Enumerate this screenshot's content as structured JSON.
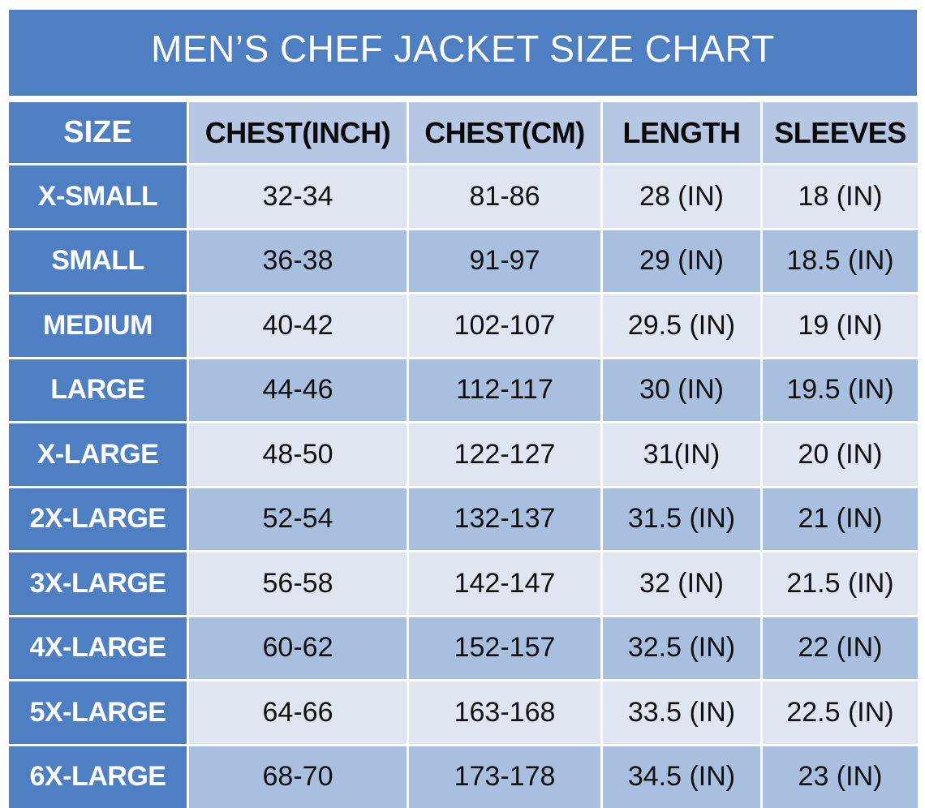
{
  "title": "MEN’S CHEF JACKET SIZE CHART",
  "headers": [
    "SIZE",
    "CHEST(INCH)",
    "CHEST(CM)",
    "LENGTH",
    "SLEEVES"
  ],
  "rows": [
    {
      "size": "X-SMALL",
      "chest_in": "32-34",
      "chest_cm": "81-86",
      "length": "28 (IN)",
      "sleeves": "18 (IN)"
    },
    {
      "size": "SMALL",
      "chest_in": "36-38",
      "chest_cm": "91-97",
      "length": "29 (IN)",
      "sleeves": "18.5 (IN)"
    },
    {
      "size": "MEDIUM",
      "chest_in": "40-42",
      "chest_cm": "102-107",
      "length": "29.5 (IN)",
      "sleeves": "19 (IN)"
    },
    {
      "size": "LARGE",
      "chest_in": "44-46",
      "chest_cm": "112-117",
      "length": "30 (IN)",
      "sleeves": "19.5 (IN)"
    },
    {
      "size": "X-LARGE",
      "chest_in": "48-50",
      "chest_cm": "122-127",
      "length": "31(IN)",
      "sleeves": "20 (IN)"
    },
    {
      "size": "2X-LARGE",
      "chest_in": "52-54",
      "chest_cm": "132-137",
      "length": "31.5 (IN)",
      "sleeves": "21 (IN)"
    },
    {
      "size": "3X-LARGE",
      "chest_in": "56-58",
      "chest_cm": "142-147",
      "length": "32 (IN)",
      "sleeves": "21.5 (IN)"
    },
    {
      "size": "4X-LARGE",
      "chest_in": "60-62",
      "chest_cm": "152-157",
      "length": "32.5 (IN)",
      "sleeves": "22 (IN)"
    },
    {
      "size": "5X-LARGE",
      "chest_in": "64-66",
      "chest_cm": "163-168",
      "length": "33.5 (IN)",
      "sleeves": "22.5 (IN)"
    },
    {
      "size": "6X-LARGE",
      "chest_in": "68-70",
      "chest_cm": "173-178",
      "length": "34.5 (IN)",
      "sleeves": "23 (IN)"
    }
  ],
  "colors": {
    "header_blue": "#4e7fc2",
    "header_light": "#b6c7e3",
    "row_light": "#dfe6f2",
    "row_dark": "#a9bfe0"
  }
}
